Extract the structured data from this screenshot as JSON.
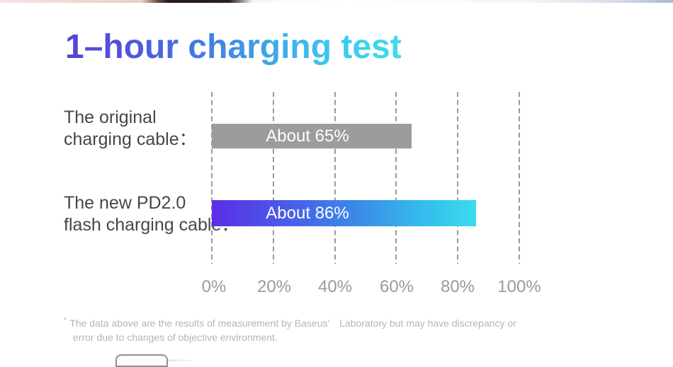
{
  "title": {
    "text": "1–hour charging test"
  },
  "chart_data": {
    "type": "bar",
    "orientation": "horizontal",
    "title": "1–hour charging test",
    "categories": [
      "The original charging cable",
      "The new PD2.0 flash charging cable"
    ],
    "values": [
      65,
      86
    ],
    "bar_labels": [
      "About 65%",
      "About 86%"
    ],
    "x_ticks": [
      "0%",
      "20%",
      "40%",
      "60%",
      "80%",
      "100%"
    ],
    "xlim": [
      0,
      100
    ],
    "grid": "vertical dashed gridlines",
    "legend": "none",
    "bar_colors": [
      "#9c9c9c",
      "gradient #5b2fe8 to #39dcef"
    ]
  },
  "rows": [
    {
      "label_line1": "The original",
      "label_line2": "charging cable：",
      "value_label": "About 65%"
    },
    {
      "label_line1": "The new PD2.0",
      "label_line2": "flash charging cable：",
      "value_label": "About 86%"
    }
  ],
  "axis": {
    "ticks": [
      "0%",
      "20%",
      "40%",
      "60%",
      "80%",
      "100%"
    ]
  },
  "footer": {
    "marker": "*",
    "line1": "The data above are the results of measurement by Baseus’　Laboratory but may have discrepancy or",
    "line2": "error due to changes of objective environment."
  },
  "colors": {
    "title_gradient_start": "#5545d5",
    "title_gradient_end": "#3fdcee",
    "bar1_fill": "#9c9c9c",
    "bar2_gradient_start": "#5b2fe8",
    "bar2_gradient_end": "#39dcef",
    "label_text": "#474747",
    "tick_text": "#9a9a9a",
    "footer_text": "#b5b5b5"
  }
}
